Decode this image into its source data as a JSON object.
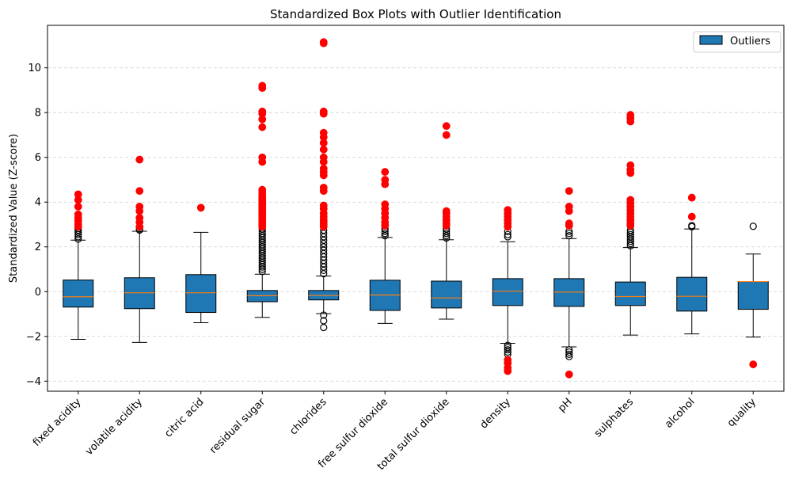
{
  "chart_data": {
    "type": "box",
    "title": "Standardized Box Plots with Outlier Identification",
    "xlabel": "",
    "ylabel": "Standardized Value (Z-score)",
    "ylim": [
      -4.45,
      11.9
    ],
    "yticks": [
      -4,
      -2,
      0,
      2,
      4,
      6,
      8,
      10
    ],
    "grid": "y-dashed",
    "legend": {
      "position": "top-right",
      "entries": [
        {
          "label": "Outliers",
          "color": "#1f77b4"
        }
      ]
    },
    "box_color": "#1f77b4",
    "median_color": "#ff7f0e",
    "outlier_color": "#ff0000",
    "categories": [
      "fixed acidity",
      "volatile acidity",
      "citric acid",
      "residual sugar",
      "chlorides",
      "free sulfur dioxide",
      "total sulfur dioxide",
      "density",
      "pH",
      "sulphates",
      "alcohol",
      "quality"
    ],
    "boxes": [
      {
        "name": "fixed acidity",
        "whisker_low": -2.13,
        "q1": -0.69,
        "median": -0.23,
        "q3": 0.52,
        "whisker_high": 2.3,
        "fliers_hollow": [
          2.35,
          2.45,
          2.55,
          2.65,
          2.75,
          2.82
        ],
        "fliers_red": [
          2.9,
          3.0,
          3.15,
          3.3,
          3.45,
          3.8,
          4.1,
          4.35
        ]
      },
      {
        "name": "volatile acidity",
        "whisker_low": -2.27,
        "q1": -0.76,
        "median": -0.05,
        "q3": 0.62,
        "whisker_high": 2.7,
        "fliers_hollow": [
          2.75,
          2.8
        ],
        "fliers_red": [
          2.9,
          3.1,
          3.3,
          3.6,
          3.8,
          4.5,
          5.9
        ]
      },
      {
        "name": "citric acid",
        "whisker_low": -1.39,
        "q1": -0.93,
        "median": -0.05,
        "q3": 0.76,
        "whisker_high": 2.65,
        "fliers_hollow": [],
        "fliers_red": [
          3.75
        ]
      },
      {
        "name": "residual sugar",
        "whisker_low": -1.15,
        "q1": -0.45,
        "median": -0.18,
        "q3": 0.05,
        "whisker_high": 0.78,
        "fliers_hollow": [
          0.9,
          1.0,
          1.1,
          1.2,
          1.3,
          1.4,
          1.5,
          1.6,
          1.7,
          1.8,
          1.9,
          2.0,
          2.1,
          2.2,
          2.3,
          2.4,
          2.5,
          2.6,
          2.7,
          2.8
        ],
        "fliers_red": [
          2.9,
          3.0,
          3.1,
          3.2,
          3.3,
          3.4,
          3.5,
          3.6,
          3.7,
          3.8,
          3.9,
          4.0,
          4.1,
          4.2,
          4.3,
          4.45,
          4.55,
          5.8,
          6.0,
          7.35,
          7.7,
          7.95,
          8.05,
          9.1,
          9.2
        ]
      },
      {
        "name": "chlorides",
        "whisker_low": -0.98,
        "q1": -0.37,
        "median": -0.17,
        "q3": 0.05,
        "whisker_high": 0.7,
        "fliers_hollow": [
          -1.6,
          -1.3,
          -1.05,
          0.8,
          0.95,
          1.1,
          1.25,
          1.4,
          1.55,
          1.7,
          1.85,
          2.0,
          2.15,
          2.3,
          2.45,
          2.6,
          2.75
        ],
        "fliers_red": [
          2.9,
          3.0,
          3.1,
          3.2,
          3.35,
          3.5,
          3.7,
          3.85,
          4.5,
          4.65,
          5.2,
          5.35,
          5.5,
          5.8,
          6.0,
          6.35,
          6.65,
          6.9,
          7.1,
          7.95,
          8.05,
          11.1,
          11.15
        ]
      },
      {
        "name": "free sulfur dioxide",
        "whisker_low": -1.42,
        "q1": -0.84,
        "median": -0.15,
        "q3": 0.51,
        "whisker_high": 2.42,
        "fliers_hollow": [
          2.5,
          2.6,
          2.7,
          2.8
        ],
        "fliers_red": [
          2.95,
          3.1,
          3.3,
          3.5,
          3.7,
          3.9,
          4.8,
          5.0,
          5.35
        ]
      },
      {
        "name": "total sulfur dioxide",
        "whisker_low": -1.23,
        "q1": -0.73,
        "median": -0.28,
        "q3": 0.47,
        "whisker_high": 2.32,
        "fliers_hollow": [
          2.4,
          2.5,
          2.6,
          2.7,
          2.8
        ],
        "fliers_red": [
          2.95,
          3.05,
          3.2,
          3.35,
          3.5,
          3.6,
          7.0,
          7.4
        ]
      },
      {
        "name": "density",
        "whisker_low": -2.31,
        "q1": -0.62,
        "median": 0.02,
        "q3": 0.58,
        "whisker_high": 2.23,
        "fliers_hollow": [
          -2.8,
          -2.7,
          -2.6,
          -2.5,
          -2.4,
          2.45,
          2.55,
          2.7
        ],
        "fliers_red": [
          -3.55,
          -3.4,
          -3.2,
          -3.05,
          2.9,
          3.05,
          3.2,
          3.35,
          3.5,
          3.65
        ]
      },
      {
        "name": "pH",
        "whisker_low": -2.47,
        "q1": -0.66,
        "median": -0.02,
        "q3": 0.58,
        "whisker_high": 2.37,
        "fliers_hollow": [
          -2.9,
          -2.8,
          -2.7,
          -2.6,
          2.5,
          2.6,
          2.7
        ],
        "fliers_red": [
          -3.7,
          2.95,
          3.05,
          3.6,
          3.8,
          4.5
        ]
      },
      {
        "name": "sulphates",
        "whisker_low": -1.94,
        "q1": -0.62,
        "median": -0.22,
        "q3": 0.43,
        "whisker_high": 1.97,
        "fliers_hollow": [
          2.05,
          2.15,
          2.25,
          2.35,
          2.45,
          2.55,
          2.65,
          2.75
        ],
        "fliers_red": [
          2.95,
          3.05,
          3.2,
          3.35,
          3.5,
          3.65,
          3.8,
          3.95,
          4.1,
          5.3,
          5.45,
          5.65,
          7.6,
          7.75,
          7.9
        ]
      },
      {
        "name": "alcohol",
        "whisker_low": -1.89,
        "q1": -0.87,
        "median": -0.21,
        "q3": 0.64,
        "whisker_high": 2.8,
        "fliers_hollow": [
          2.9,
          2.95
        ],
        "fliers_red": [
          3.35,
          4.2
        ]
      },
      {
        "name": "quality",
        "whisker_low": -2.03,
        "q1": -0.79,
        "median": 0.45,
        "q3": 0.45,
        "whisker_high": 1.68,
        "fliers_hollow": [
          2.92
        ],
        "fliers_red": [
          -3.25
        ]
      }
    ]
  }
}
